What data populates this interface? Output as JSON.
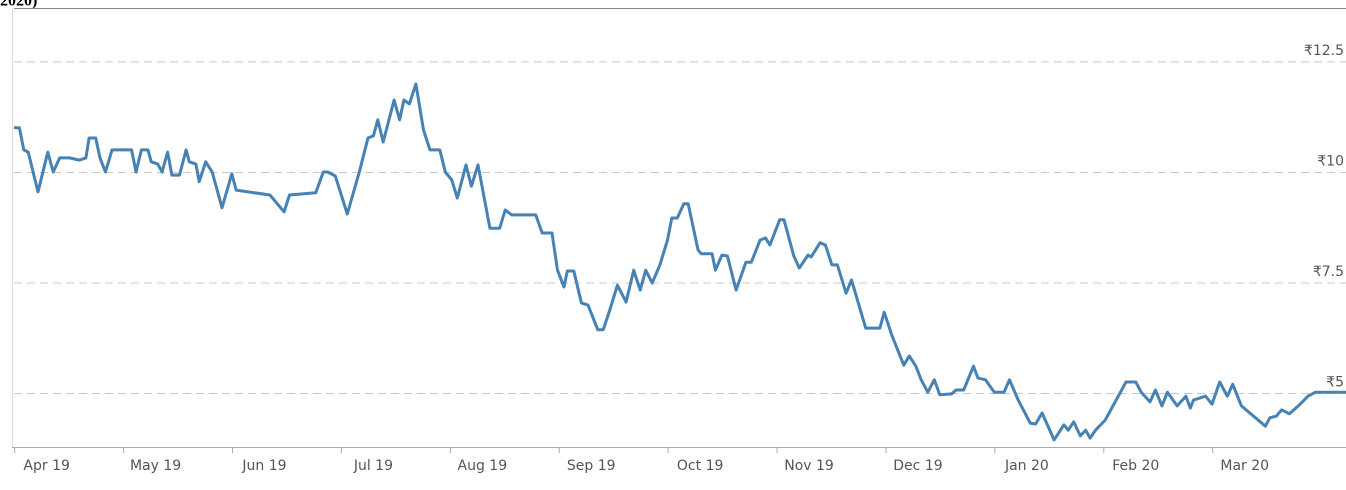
{
  "chart_data": {
    "type": "line",
    "title": "2020)",
    "xlim": [
      -0.3,
      11.93
    ],
    "ylim": [
      3.79,
      13.72
    ],
    "xticks": [
      {
        "value": 0,
        "label": "Apr 19"
      },
      {
        "value": 1,
        "label": "May 19"
      },
      {
        "value": 2,
        "label": "Jun 19"
      },
      {
        "value": 3,
        "label": "Jul 19"
      },
      {
        "value": 4,
        "label": "Aug 19"
      },
      {
        "value": 5,
        "label": "Sep 19"
      },
      {
        "value": 6,
        "label": "Oct 19"
      },
      {
        "value": 7,
        "label": "Nov 19"
      },
      {
        "value": 8,
        "label": "Dec 19"
      },
      {
        "value": 9,
        "label": "Jan 20"
      },
      {
        "value": 10,
        "label": "Feb 20"
      },
      {
        "value": 11,
        "label": "Mar 20"
      }
    ],
    "yticks": [
      {
        "value": 5,
        "label": "₹5"
      },
      {
        "value": 7.5,
        "label": "₹7.5"
      },
      {
        "value": 10,
        "label": "₹10"
      },
      {
        "value": 12.5,
        "label": "₹12.5"
      }
    ],
    "grid": true,
    "color": "#4682b4",
    "x": [
      -0.3,
      -0.25,
      -0.21,
      -0.17,
      -0.08,
      0.01,
      0.06,
      0.12,
      0.21,
      0.3,
      0.36,
      0.39,
      0.45,
      0.49,
      0.54,
      0.6,
      0.78,
      0.82,
      0.87,
      0.93,
      0.96,
      1.02,
      1.06,
      1.11,
      1.15,
      1.22,
      1.28,
      1.31,
      1.37,
      1.4,
      1.46,
      1.52,
      1.61,
      1.7,
      1.74,
      2.05,
      2.18,
      2.23,
      2.47,
      2.54,
      2.58,
      2.65,
      2.76,
      2.87,
      2.95,
      3.0,
      3.04,
      3.09,
      3.19,
      3.24,
      3.28,
      3.33,
      3.39,
      3.46,
      3.52,
      3.61,
      3.66,
      3.72,
      3.77,
      3.85,
      3.9,
      3.96,
      4.07,
      4.16,
      4.21,
      4.27,
      4.49,
      4.55,
      4.64,
      4.69,
      4.75,
      4.78,
      4.84,
      4.91,
      4.97,
      5.06,
      5.11,
      5.17,
      5.24,
      5.32,
      5.39,
      5.45,
      5.5,
      5.56,
      5.63,
      5.7,
      5.74,
      5.79,
      5.85,
      5.89,
      5.98,
      6.01,
      6.11,
      6.14,
      6.2,
      6.25,
      6.33,
      6.42,
      6.47,
      6.55,
      6.6,
      6.64,
      6.73,
      6.77,
      6.86,
      6.91,
      6.99,
      7.02,
      7.1,
      7.15,
      7.21,
      7.26,
      7.34,
      7.39,
      7.52,
      7.65,
      7.69,
      7.76,
      7.87,
      7.92,
      7.98,
      8.03,
      8.09,
      8.15,
      8.2,
      8.31,
      8.35,
      8.42,
      8.51,
      8.55,
      8.62,
      8.7,
      8.79,
      8.84,
      8.92,
      9.03,
      9.08,
      9.14,
      9.25,
      9.34,
      9.38,
      9.43,
      9.49,
      9.54,
      9.58,
      9.63,
      9.72,
      9.91,
      10.0,
      10.05,
      10.13,
      10.18,
      10.24,
      10.29,
      10.38,
      10.46,
      10.5,
      10.53,
      10.64,
      10.7,
      10.77,
      10.84,
      10.89,
      10.97,
      11.19,
      11.23,
      11.29,
      11.34,
      11.41,
      11.51,
      11.58,
      11.65,
      11.93
    ],
    "values": [
      11.01,
      11.01,
      10.51,
      10.46,
      9.56,
      10.46,
      10.01,
      10.33,
      10.33,
      10.28,
      10.33,
      10.78,
      10.78,
      10.33,
      10.01,
      10.51,
      10.51,
      10.01,
      10.51,
      10.51,
      10.24,
      10.19,
      10.01,
      10.46,
      9.94,
      9.94,
      10.51,
      10.24,
      10.19,
      9.79,
      10.24,
      10.01,
      9.2,
      9.97,
      9.6,
      9.49,
      9.11,
      9.49,
      9.54,
      10.01,
      10.01,
      9.92,
      9.06,
      10.01,
      10.78,
      10.83,
      11.19,
      10.69,
      11.64,
      11.19,
      11.64,
      11.55,
      12.0,
      10.96,
      10.51,
      10.51,
      10.01,
      9.83,
      9.42,
      10.17,
      9.69,
      10.17,
      8.74,
      8.74,
      9.15,
      9.04,
      9.04,
      8.63,
      8.63,
      7.79,
      7.41,
      7.77,
      7.77,
      7.05,
      7.0,
      6.44,
      6.44,
      6.89,
      7.45,
      7.07,
      7.79,
      7.34,
      7.79,
      7.5,
      7.91,
      8.47,
      8.97,
      8.97,
      9.29,
      9.29,
      8.25,
      8.16,
      8.16,
      7.79,
      8.13,
      8.11,
      7.34,
      7.97,
      7.97,
      8.47,
      8.52,
      8.36,
      8.93,
      8.93,
      8.11,
      7.84,
      8.13,
      8.09,
      8.41,
      8.36,
      7.91,
      7.91,
      7.27,
      7.57,
      6.48,
      6.48,
      6.84,
      6.32,
      5.64,
      5.85,
      5.62,
      5.31,
      5.03,
      5.31,
      4.97,
      4.99,
      5.08,
      5.08,
      5.62,
      5.35,
      5.31,
      5.03,
      5.03,
      5.31,
      4.85,
      4.33,
      4.31,
      4.56,
      3.95,
      4.29,
      4.17,
      4.36,
      4.04,
      4.17,
      3.99,
      4.17,
      4.4,
      5.26,
      5.26,
      5.03,
      4.81,
      5.08,
      4.72,
      5.03,
      4.72,
      4.94,
      4.67,
      4.85,
      4.94,
      4.76,
      5.26,
      4.94,
      5.21,
      4.72,
      4.26,
      4.45,
      4.49,
      4.63,
      4.54,
      4.76,
      4.94,
      5.03,
      5.03
    ]
  }
}
